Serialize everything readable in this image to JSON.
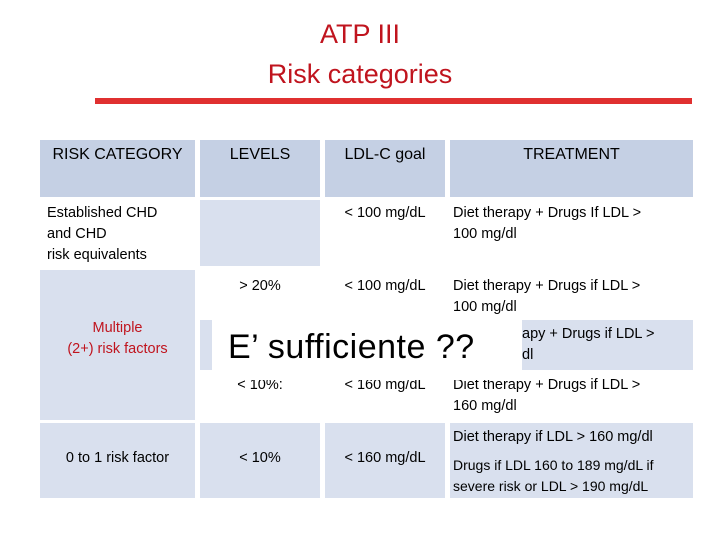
{
  "title": {
    "line1": "ATP III",
    "line2": "Risk categories"
  },
  "headers": {
    "risk_category": "RISK CATEGORY",
    "levels": "LEVELS",
    "ldl_goal": "LDL-C goal",
    "treatment": "TREATMENT"
  },
  "rows": {
    "chd": {
      "category_l1": "Established CHD",
      "category_l2": "and CHD",
      "category_l3": "risk equivalents",
      "ldl": "< 100 mg/dL",
      "treat_l1": "Diet therapy  + Drugs If  LDL >",
      "treat_l2": "100 mg/dl"
    },
    "multi_a": {
      "level": "> 20%",
      "ldl": "< 100 mg/dL",
      "treat_l1": "Diet therapy  + Drugs  if LDL  >",
      "treat_l2": "100 mg/dl"
    },
    "multi_category_l1": "Multiple",
    "multi_category_l2": "(2+) risk factors",
    "multi_b": {
      "treat_l1_visible": "apy  + Drugs if LDL  >",
      "treat_l2_visible": "dl"
    },
    "multi_c": {
      "level": "< 10%:",
      "ldl": "<  160 mg/dL",
      "treat_l1": "Diet therapy  + Drugs if LDL  >",
      "treat_l2": "160 mg/dl"
    },
    "low": {
      "category": "0 to 1 risk factor",
      "level": "< 10%",
      "ldl": "<  160 mg/dL",
      "treat_a": "Diet therapy  if LDL > 160 mg/dl",
      "treat_b_l1": "Drugs if LDL 160 to 189 mg/dL if",
      "treat_b_l2": "severe risk  or  LDL > 190 mg/dL"
    }
  },
  "overlay": {
    "text": "E’ sufficiente ??"
  },
  "colors": {
    "header_bg": "#c5d0e4",
    "band_bg": "#d9e0ee",
    "accent_red": "#c0141e",
    "rule": "#e03030"
  }
}
